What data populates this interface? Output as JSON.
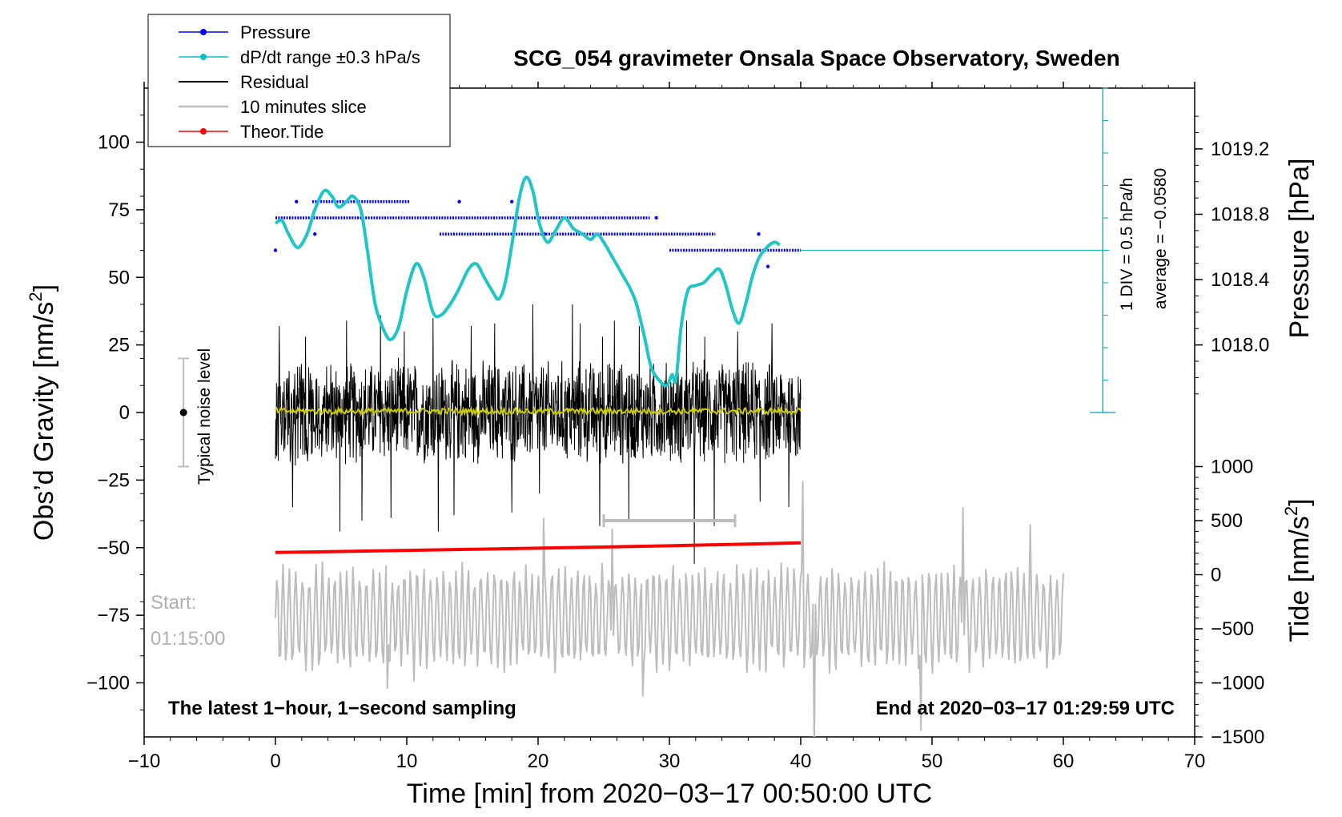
{
  "chart_data": {
    "type": "line",
    "title": "SCG_054 gravimeter Onsala Space Observatory, Sweden",
    "xlabel": "Time [min] from 2020−03−17 00:50:00 UTC",
    "ylabel_left": "Obs’d Gravity [nm/s",
    "ylabel_left_sup": "2",
    "ylabel_left_close": "]",
    "ylabel_right_top": "Pressure [hPa]",
    "ylabel_right_bottom": "Tide [nm/s",
    "ylabel_right_bottom_sup": "2",
    "ylabel_right_bottom_close": "]",
    "xlim": [
      -10,
      70
    ],
    "ylim_left": [
      -120,
      120
    ],
    "x_ticks": [
      {
        "v": -10,
        "label": "−10"
      },
      {
        "v": 0,
        "label": "0"
      },
      {
        "v": 10,
        "label": "10"
      },
      {
        "v": 20,
        "label": "20"
      },
      {
        "v": 30,
        "label": "30"
      },
      {
        "v": 40,
        "label": "40"
      },
      {
        "v": 50,
        "label": "50"
      },
      {
        "v": 60,
        "label": "60"
      },
      {
        "v": 70,
        "label": "70"
      }
    ],
    "y_ticks_left": [
      {
        "v": 100,
        "label": "100"
      },
      {
        "v": 75,
        "label": "75"
      },
      {
        "v": 50,
        "label": "50"
      },
      {
        "v": 25,
        "label": "25"
      },
      {
        "v": 0,
        "label": "0"
      },
      {
        "v": -25,
        "label": "−25"
      },
      {
        "v": -50,
        "label": "−50"
      },
      {
        "v": -75,
        "label": "−75"
      },
      {
        "v": -100,
        "label": "−100"
      }
    ],
    "y_ticks_pressure": [
      {
        "v": 1019.2,
        "label": "1019.2"
      },
      {
        "v": 1018.8,
        "label": "1018.8"
      },
      {
        "v": 1018.4,
        "label": "1018.4"
      },
      {
        "v": 1018.0,
        "label": "1018.0"
      }
    ],
    "pressure_axis_map": {
      "p1": 1019.2,
      "g1": 97.5,
      "p2": 1018.0,
      "g2": 25.0
    },
    "y_ticks_tide": [
      {
        "v": 1000,
        "label": "1000"
      },
      {
        "v": 500,
        "label": "500"
      },
      {
        "v": 0,
        "label": "0"
      },
      {
        "v": -500,
        "label": "−500"
      },
      {
        "v": -1000,
        "label": "−1000"
      },
      {
        "v": -1500,
        "label": "−1500"
      }
    ],
    "tide_axis_map": {
      "t1": 1000,
      "g1": -20.0,
      "t2": -1500,
      "g2": -120.0
    },
    "legend": [
      {
        "label": "Pressure",
        "color": "#0000ff",
        "marker": true
      },
      {
        "label": "dP/dt range ±0.3 hPa/s",
        "color": "#00c0c0",
        "marker": true
      },
      {
        "label": "Residual",
        "color": "#000000",
        "marker": false
      },
      {
        "label": "10 minutes slice",
        "color": "#bdbdbd",
        "marker": false
      },
      {
        "label": "Theor.Tide",
        "color": "#ff0000",
        "marker": true
      }
    ],
    "series": [
      {
        "name": "Pressure",
        "color": "#0000ff",
        "segments": [
          {
            "x0": 0.0,
            "x1": 28.5,
            "y": 72
          },
          {
            "x0": 2.8,
            "x1": 10.2,
            "y": 78
          },
          {
            "x0": 12.5,
            "x1": 33.5,
            "y": 66
          },
          {
            "x0": 30.0,
            "x1": 40.0,
            "y": 60
          }
        ],
        "dots": [
          [
            0.0,
            60
          ],
          [
            1.6,
            78
          ],
          [
            3.0,
            66
          ],
          [
            14.0,
            78
          ],
          [
            18.0,
            78
          ],
          [
            20.5,
            66
          ],
          [
            36.8,
            66
          ],
          [
            37.5,
            54
          ],
          [
            29.0,
            72
          ]
        ]
      },
      {
        "name": "dP/dt range ±0.3 hPa/s",
        "color": "#20c5c5",
        "points": [
          [
            0.0,
            70
          ],
          [
            0.5,
            71
          ],
          [
            1.0,
            66
          ],
          [
            1.7,
            61
          ],
          [
            2.4,
            66
          ],
          [
            3.0,
            75
          ],
          [
            3.7,
            82
          ],
          [
            4.3,
            80
          ],
          [
            4.8,
            76
          ],
          [
            5.4,
            78
          ],
          [
            5.9,
            80
          ],
          [
            6.5,
            75
          ],
          [
            7.0,
            60
          ],
          [
            7.6,
            40
          ],
          [
            8.3,
            30
          ],
          [
            8.8,
            27
          ],
          [
            9.4,
            32
          ],
          [
            10.0,
            45
          ],
          [
            10.7,
            55
          ],
          [
            11.3,
            50
          ],
          [
            12.0,
            37
          ],
          [
            12.6,
            36
          ],
          [
            13.3,
            40
          ],
          [
            14.0,
            46
          ],
          [
            14.7,
            53
          ],
          [
            15.3,
            55
          ],
          [
            15.9,
            50
          ],
          [
            16.5,
            45
          ],
          [
            17.0,
            42
          ],
          [
            17.5,
            48
          ],
          [
            18.0,
            62
          ],
          [
            18.6,
            80
          ],
          [
            19.1,
            87
          ],
          [
            19.6,
            82
          ],
          [
            20.1,
            70
          ],
          [
            20.7,
            63
          ],
          [
            21.3,
            67
          ],
          [
            22.0,
            72
          ],
          [
            22.7,
            68
          ],
          [
            23.4,
            66
          ],
          [
            24.0,
            64
          ],
          [
            24.5,
            66
          ],
          [
            25.0,
            63
          ],
          [
            25.6,
            58
          ],
          [
            26.3,
            52
          ],
          [
            27.0,
            46
          ],
          [
            27.5,
            40
          ],
          [
            28.1,
            28
          ],
          [
            28.6,
            17
          ],
          [
            29.2,
            12
          ],
          [
            29.8,
            10
          ],
          [
            30.2,
            14
          ],
          [
            30.5,
            12
          ],
          [
            30.9,
            32
          ],
          [
            31.4,
            45
          ],
          [
            32.0,
            47
          ],
          [
            32.6,
            48
          ],
          [
            33.2,
            51
          ],
          [
            33.8,
            53
          ],
          [
            34.3,
            47
          ],
          [
            34.8,
            38
          ],
          [
            35.3,
            33
          ],
          [
            35.8,
            40
          ],
          [
            36.3,
            50
          ],
          [
            36.8,
            57
          ],
          [
            37.4,
            61
          ],
          [
            38.0,
            63
          ],
          [
            38.4,
            62
          ]
        ]
      },
      {
        "name": "Residual",
        "color": "#000000",
        "x_range": [
          0,
          40
        ],
        "envelope": 21,
        "spikes": [
          [
            0.3,
            32
          ],
          [
            1.3,
            -35
          ],
          [
            2.3,
            28
          ],
          [
            4.9,
            -44
          ],
          [
            5.4,
            34
          ],
          [
            6.6,
            -40
          ],
          [
            8.0,
            36
          ],
          [
            8.8,
            -39
          ],
          [
            9.8,
            30
          ],
          [
            12.0,
            35
          ],
          [
            12.4,
            -44
          ],
          [
            13.6,
            -38
          ],
          [
            14.9,
            32
          ],
          [
            16.7,
            33
          ],
          [
            18.0,
            -37
          ],
          [
            19.6,
            40
          ],
          [
            20.1,
            -30
          ],
          [
            22.6,
            40
          ],
          [
            23.2,
            33
          ],
          [
            24.7,
            -42
          ],
          [
            24.9,
            28
          ],
          [
            25.8,
            34
          ],
          [
            26.9,
            -40
          ],
          [
            27.7,
            32
          ],
          [
            31.3,
            34
          ],
          [
            31.9,
            -56
          ],
          [
            32.7,
            28
          ],
          [
            33.4,
            -42
          ],
          [
            35.2,
            30
          ],
          [
            36.9,
            -33
          ],
          [
            37.8,
            33
          ],
          [
            39.1,
            -35
          ]
        ]
      },
      {
        "name": "10 minutes slice",
        "color": "#bdbdbd",
        "x_range": [
          0,
          60
        ],
        "baseline_tide": -400,
        "amplitude_tide": 520,
        "spikes": [
          [
            8.5,
            -1050
          ],
          [
            10.5,
            -980
          ],
          [
            20.4,
            520
          ],
          [
            25.6,
            420
          ],
          [
            28.0,
            -1120
          ],
          [
            40.2,
            860
          ],
          [
            41.0,
            -1640
          ],
          [
            49.2,
            -1440
          ],
          [
            52.4,
            620
          ],
          [
            57.5,
            460
          ]
        ]
      },
      {
        "name": "Theor.Tide",
        "color": "#ff0000",
        "points": [
          [
            0.0,
            -51.8
          ],
          [
            10.0,
            -51.0
          ],
          [
            20.0,
            -50.2
          ],
          [
            30.0,
            -49.3
          ],
          [
            40.0,
            -48.2
          ]
        ]
      },
      {
        "name": "Running mean",
        "color": "#cccc00",
        "x_range": [
          0,
          40
        ],
        "level": 0.5
      }
    ],
    "slice_marker": {
      "x0": 25,
      "x1": 35,
      "y": -40
    },
    "noise_bar": {
      "x": -7.0,
      "y_low": -20,
      "y_high": 20,
      "y_center": 0
    },
    "dpdt_scale": {
      "x": 63,
      "y_top": 120,
      "y_bottom": 0,
      "mid_y": 60,
      "x_from": 40,
      "x_to": 63.5
    },
    "annotations": {
      "typical_noise": "Typical noise level",
      "dpdt_div": "1 DIV = 0.5 hPa/h",
      "average": "average = −0.0580",
      "start_label": "Start:",
      "start_time": "01:15:00",
      "latest": "The latest 1−hour, 1−second sampling",
      "end_at": "End at 2020−03−17 01:29:59 UTC"
    }
  }
}
